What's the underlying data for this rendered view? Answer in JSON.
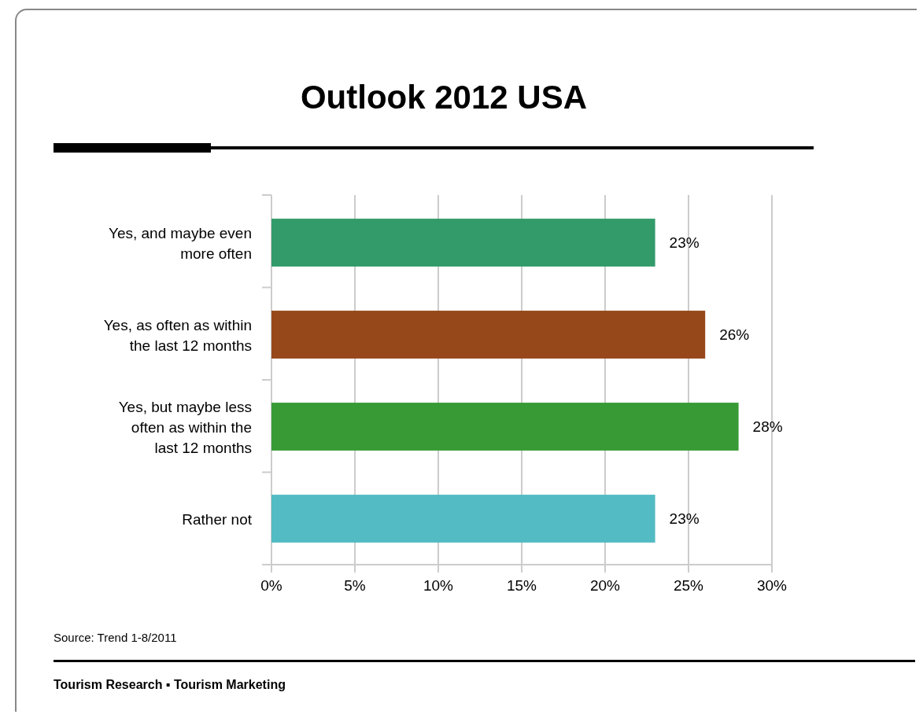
{
  "chart_data": {
    "type": "bar",
    "orientation": "horizontal",
    "title": "Outlook 2012 USA",
    "categories": [
      "Yes, and maybe even more often",
      "Yes, as often as within the last 12 months",
      "Yes, but maybe less often as within the last 12 months",
      "Rather not"
    ],
    "values": [
      23,
      26,
      28,
      23
    ],
    "colors": [
      "#339b6a",
      "#96481a",
      "#379a35",
      "#52bbc3"
    ],
    "value_labels": [
      "23%",
      "26%",
      "28%",
      "23%"
    ],
    "xlim": [
      0,
      30
    ],
    "xticks": [
      {
        "value": 0,
        "label": "0%"
      },
      {
        "value": 5,
        "label": "5%"
      },
      {
        "value": 10,
        "label": "10%"
      },
      {
        "value": 15,
        "label": "15%"
      },
      {
        "value": 20,
        "label": "20%"
      },
      {
        "value": 25,
        "label": "25%"
      },
      {
        "value": 30,
        "label": "30%"
      }
    ],
    "grid": "x",
    "annotations": [
      "Source: Trend 1-8/2011",
      "Tourism Research ▪ Tourism Marketing"
    ]
  }
}
